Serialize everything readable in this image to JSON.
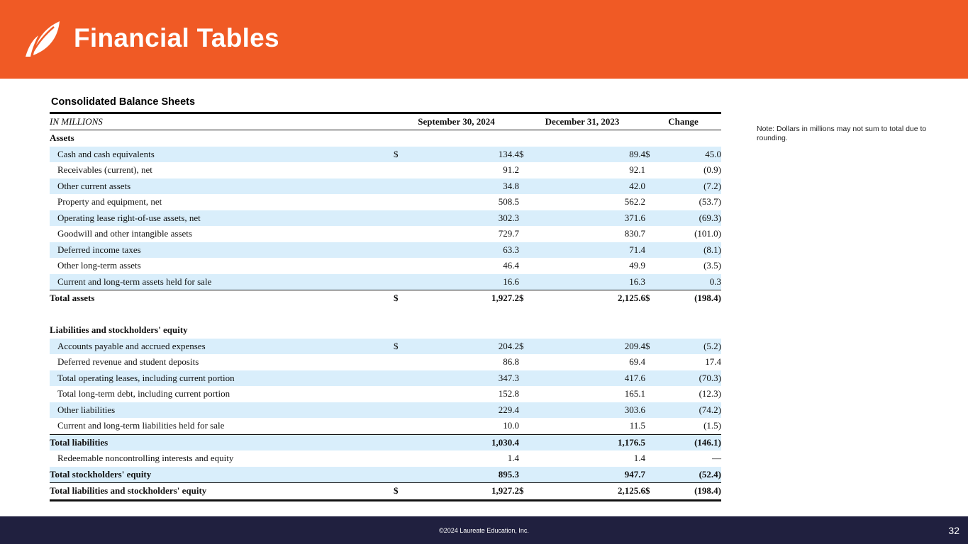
{
  "header": {
    "title": "Financial Tables",
    "accent": "#f05a25"
  },
  "section_title": "Consolidated  Balance Sheets",
  "note": "Note:  Dollars in millions may not sum to total due to rounding.",
  "table": {
    "columns": [
      "IN MILLIONS",
      "September 30, 2024",
      "December 31, 2023",
      "Change"
    ],
    "rows": [
      {
        "label": "Assets",
        "style": "section"
      },
      {
        "label": "Cash and cash equivalents",
        "cur": "$",
        "v1": "134.4",
        "v2": "89.4",
        "v3": "45.0",
        "style": "item",
        "shade": true
      },
      {
        "label": "Receivables (current),  net",
        "v1": "91.2",
        "v2": "92.1",
        "v3": "(0.9)",
        "style": "item"
      },
      {
        "label": "Other current assets",
        "v1": "34.8",
        "v2": "42.0",
        "v3": "(7.2)",
        "style": "item",
        "shade": true
      },
      {
        "label": "Property and equipment,  net",
        "v1": "508.5",
        "v2": "562.2",
        "v3": "(53.7)",
        "style": "item"
      },
      {
        "label": "Operating lease right-of-use assets, net",
        "v1": "302.3",
        "v2": "371.6",
        "v3": "(69.3)",
        "style": "item",
        "shade": true
      },
      {
        "label": "Goodwill and other intangible assets",
        "v1": "729.7",
        "v2": "830.7",
        "v3": "(101.0)",
        "style": "item"
      },
      {
        "label": "Deferred income taxes",
        "v1": "63.3",
        "v2": "71.4",
        "v3": "(8.1)",
        "style": "item",
        "shade": true
      },
      {
        "label": "Other long-term assets",
        "v1": "46.4",
        "v2": "49.9",
        "v3": "(3.5)",
        "style": "item"
      },
      {
        "label": "Current and long-term assets held for sale",
        "v1": "16.6",
        "v2": "16.3",
        "v3": "0.3",
        "style": "item",
        "shade": true
      },
      {
        "label": "Total assets",
        "cur": "$",
        "v1": "1,927.2",
        "v2": "2,125.6",
        "v3": "(198.4)",
        "style": "total"
      },
      {
        "label": "",
        "style": "blank"
      },
      {
        "label": "Liabilities  and stockholders'  equity",
        "style": "section"
      },
      {
        "label": "Accounts  payable and accrued expenses",
        "cur": "$",
        "v1": "204.2",
        "v2": "209.4",
        "v3": "(5.2)",
        "style": "item",
        "shade": true
      },
      {
        "label": "Deferred revenue and student deposits",
        "v1": "86.8",
        "v2": "69.4",
        "v3": "17.4",
        "style": "item"
      },
      {
        "label": "Total operating leases, including current portion",
        "v1": "347.3",
        "v2": "417.6",
        "v3": "(70.3)",
        "style": "item",
        "shade": true
      },
      {
        "label": "Total long-term debt, including current portion",
        "v1": "152.8",
        "v2": "165.1",
        "v3": "(12.3)",
        "style": "item"
      },
      {
        "label": "Other liabilities",
        "v1": "229.4",
        "v2": "303.6",
        "v3": "(74.2)",
        "style": "item",
        "shade": true
      },
      {
        "label": "Current and long-term liabilities held for sale",
        "v1": "10.0",
        "v2": "11.5",
        "v3": "(1.5)",
        "style": "item"
      },
      {
        "label": "Total liabilities",
        "v1": "1,030.4",
        "v2": "1,176.5",
        "v3": "(146.1)",
        "style": "total",
        "shade": true
      },
      {
        "label": "Redeemable noncontrolling  interests and equity",
        "v1": "1.4",
        "v2": "1.4",
        "v3": "—",
        "style": "item"
      },
      {
        "label": "Total stockholders' equity",
        "v1": "895.3",
        "v2": "947.7",
        "v3": "(52.4)",
        "style": "bold",
        "shade": true
      },
      {
        "label": "Total liabilities  and stockholders' equity",
        "cur": "$",
        "v1": "1,927.2",
        "v2": "2,125.6",
        "v3": "(198.4)",
        "style": "grand"
      }
    ]
  },
  "footer": {
    "copyright": "©2024 Laureate Education, Inc.",
    "page_number": "32",
    "background": "#20203f"
  }
}
